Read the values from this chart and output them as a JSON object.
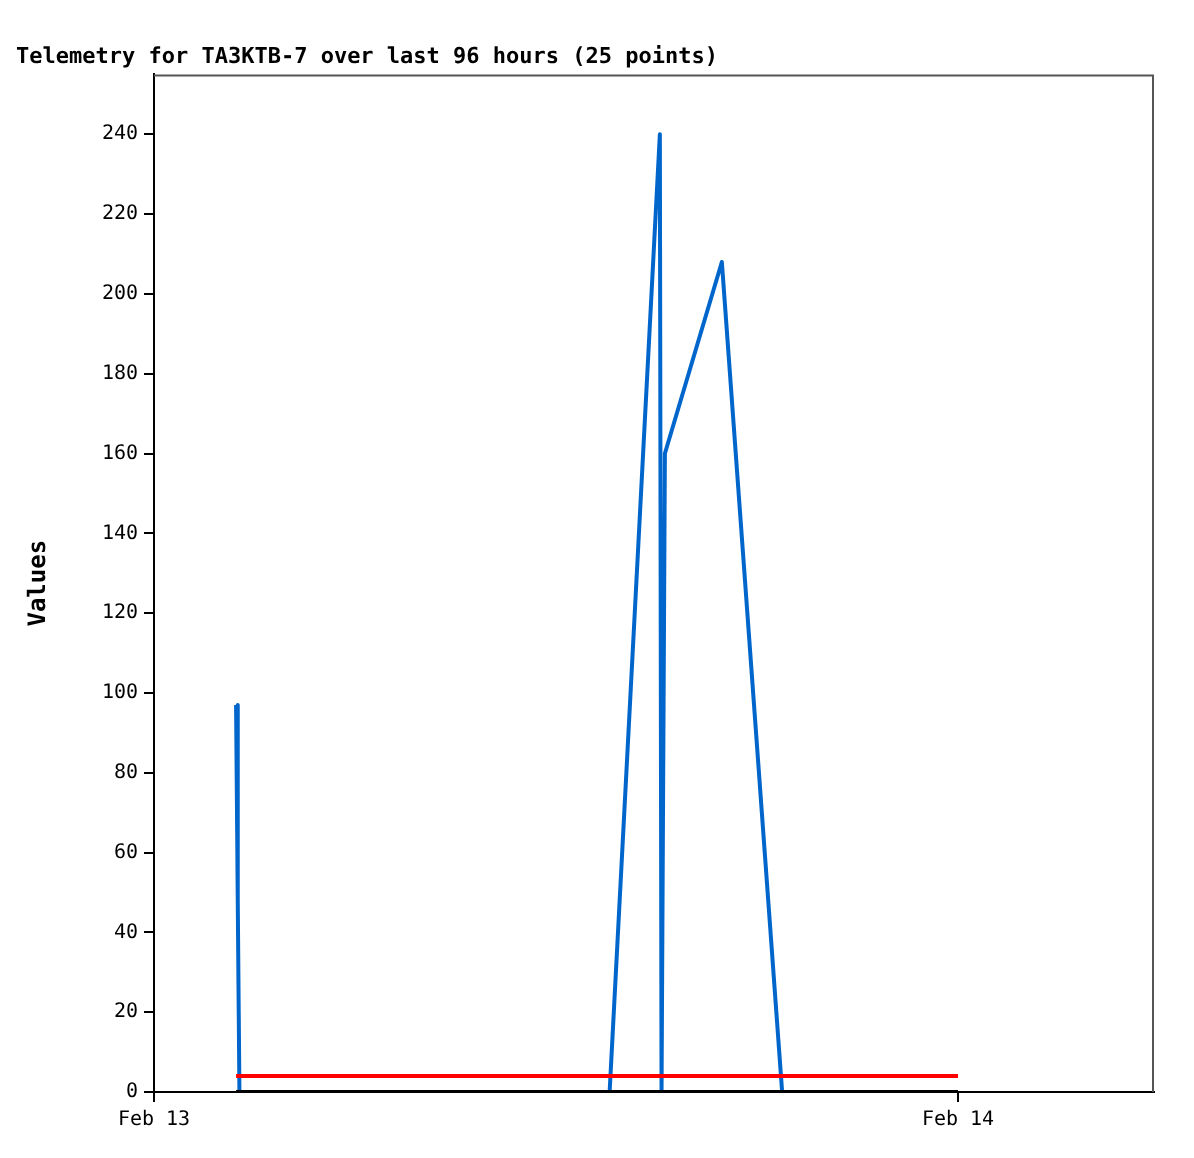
{
  "chart_data": {
    "type": "line",
    "title": "Telemetry for TA3KTB-7 over last 96 hours (25 points)",
    "ylabel": "Values",
    "xlim": [
      "--02-13",
      "--02-14T05:51"
    ],
    "xticks": [
      {
        "value": "--02-13",
        "label": "Feb 13"
      },
      {
        "value": "--02-14",
        "label": "Feb 14"
      }
    ],
    "ylim": [
      0,
      255
    ],
    "yticks": [
      0,
      20,
      40,
      60,
      80,
      100,
      120,
      140,
      160,
      180,
      200,
      220,
      240
    ],
    "grid": false,
    "legend": false,
    "marker": "none",
    "line_style": "solid",
    "series": [
      {
        "color": "#0066cc",
        "x": [
          "--02-13T02:27",
          "--02-13T02:30",
          "--02-13T02:33",
          "--02-13T13:36",
          "--02-13T15:06",
          "--02-13T15:09",
          "--02-13T15:12",
          "--02-13T15:15",
          "--02-13T16:57",
          "--02-13T18:45",
          "--02-14"
        ],
        "values": [
          97,
          48,
          0,
          0,
          240,
          0,
          80,
          160,
          208,
          0,
          0
        ]
      },
      {
        "color": "#ff0000",
        "x": [
          "--02-13T02:27",
          "--02-14"
        ],
        "values": [
          4,
          4
        ]
      },
      {
        "color": "#000000",
        "x": [
          "--02-13T02:27",
          "--02-14"
        ],
        "values": [
          0,
          0
        ]
      }
    ]
  }
}
